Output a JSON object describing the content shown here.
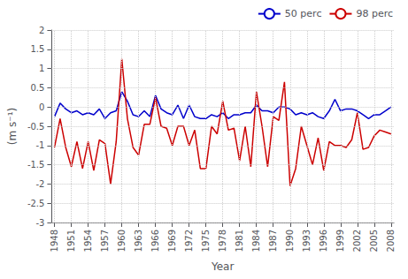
{
  "chart_data": {
    "type": "line",
    "x": [
      1948,
      1949,
      1950,
      1951,
      1952,
      1953,
      1954,
      1955,
      1956,
      1957,
      1958,
      1959,
      1960,
      1961,
      1962,
      1963,
      1964,
      1965,
      1966,
      1967,
      1968,
      1969,
      1970,
      1971,
      1972,
      1973,
      1974,
      1975,
      1976,
      1977,
      1978,
      1979,
      1980,
      1981,
      1982,
      1983,
      1984,
      1985,
      1986,
      1987,
      1988,
      1989,
      1990,
      1991,
      1992,
      1993,
      1994,
      1995,
      1996,
      1997,
      1998,
      1999,
      2000,
      2001,
      2002,
      2003,
      2004,
      2005,
      2006,
      2007,
      2008
    ],
    "series": [
      {
        "name": "50 perc",
        "color": "#0000cc",
        "values": [
          -0.25,
          0.1,
          -0.05,
          -0.15,
          -0.1,
          -0.2,
          -0.15,
          -0.2,
          -0.05,
          -0.3,
          -0.15,
          -0.1,
          0.4,
          0.15,
          -0.2,
          -0.25,
          -0.1,
          -0.25,
          0.3,
          -0.05,
          -0.15,
          -0.2,
          0.05,
          -0.3,
          0.05,
          -0.25,
          -0.3,
          -0.3,
          -0.2,
          -0.25,
          -0.15,
          -0.3,
          -0.2,
          -0.2,
          -0.15,
          -0.15,
          0.05,
          -0.1,
          -0.1,
          -0.15,
          0.0,
          0.0,
          -0.05,
          -0.2,
          -0.15,
          -0.2,
          -0.15,
          -0.25,
          -0.3,
          -0.1,
          0.2,
          -0.1,
          -0.05,
          -0.05,
          -0.1,
          -0.2,
          -0.3,
          -0.2,
          -0.2,
          -0.1,
          0.0
        ]
      },
      {
        "name": "98 perc",
        "color": "#cc0000",
        "values": [
          -1.05,
          -0.3,
          -1.05,
          -1.55,
          -0.9,
          -1.6,
          -0.9,
          -1.65,
          -0.85,
          -0.95,
          -2.0,
          -0.9,
          1.25,
          -0.3,
          -1.05,
          -1.25,
          -0.45,
          -0.45,
          0.25,
          -0.5,
          -0.55,
          -1.0,
          -0.5,
          -0.5,
          -1.0,
          -0.6,
          -1.6,
          -1.6,
          -0.5,
          -0.7,
          0.15,
          -0.6,
          -0.55,
          -1.4,
          -0.5,
          -1.55,
          0.4,
          -0.5,
          -1.55,
          -0.25,
          -0.35,
          0.65,
          -2.05,
          -1.6,
          -0.5,
          -1.0,
          -1.5,
          -0.8,
          -1.65,
          -0.9,
          -1.0,
          -1.0,
          -1.05,
          -0.85,
          -0.15,
          -1.1,
          -1.05,
          -0.75,
          -0.6,
          -0.65,
          -0.7
        ]
      }
    ],
    "xlabel": "Year",
    "ylabel": "(m s⁻¹)",
    "xlim": [
      1947.5,
      2008.5
    ],
    "ylim": [
      -3.0,
      2.0
    ],
    "xticks": [
      1948,
      1951,
      1954,
      1957,
      1960,
      1963,
      1966,
      1969,
      1972,
      1975,
      1978,
      1981,
      1984,
      1987,
      1990,
      1993,
      1996,
      1999,
      2002,
      2005,
      2008
    ],
    "yticks": [
      2.0,
      1.5,
      1.0,
      0.5,
      0.0,
      -0.5,
      -1.0,
      -1.5,
      -2.0,
      -2.5,
      -3.0
    ],
    "grid": true,
    "legend": "upper right"
  }
}
